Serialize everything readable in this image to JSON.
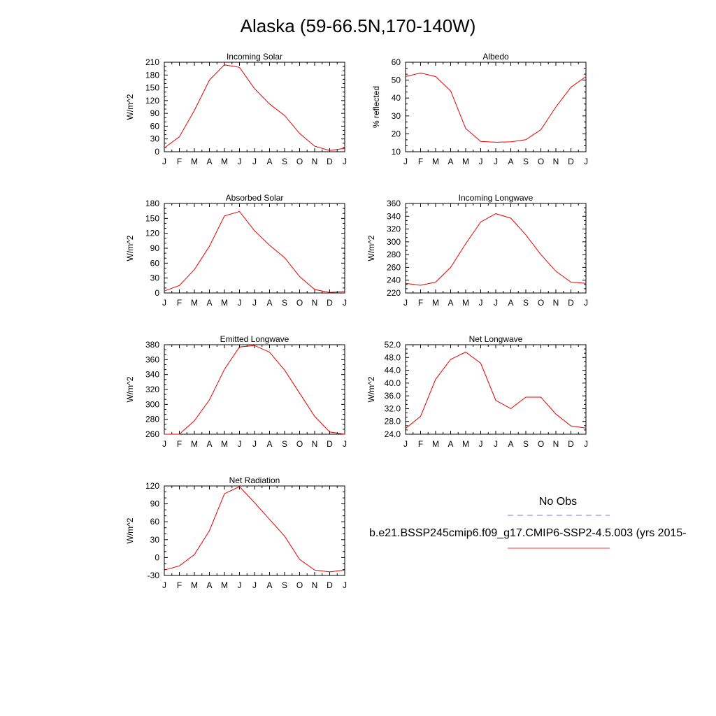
{
  "title": "Alaska (59-66.5N,170-140W)",
  "months": [
    "J",
    "F",
    "M",
    "A",
    "M",
    "J",
    "J",
    "A",
    "S",
    "O",
    "N",
    "D",
    "J"
  ],
  "legend": {
    "obs_label": "No Obs",
    "obs_color": "#7b7bd6",
    "model_label": "b.e21.BSSP245cmip6.f09_g17.CMIP6-SSP2-4.5.003 (yrs 2015-",
    "model_color": "#ff3b3b"
  },
  "series_color": "#e60000",
  "chart_data": [
    {
      "type": "line",
      "title": "Incoming Solar",
      "ylabel": "W/m^2",
      "ylim": [
        0,
        210
      ],
      "yticks": [
        "0",
        "30",
        "60",
        "90",
        "120",
        "150",
        "180",
        "210"
      ],
      "values": [
        9,
        35,
        97,
        168,
        204,
        198,
        148,
        112,
        85,
        43,
        13,
        3,
        8
      ]
    },
    {
      "type": "line",
      "title": "Albedo",
      "ylabel": "% reflected",
      "ylim": [
        10,
        60
      ],
      "yticks": [
        "10",
        "20",
        "30",
        "40",
        "50",
        "60"
      ],
      "values": [
        52,
        54,
        52,
        44,
        23,
        15.8,
        15.3,
        15.5,
        16.7,
        22.3,
        35,
        46,
        52
      ]
    },
    {
      "type": "line",
      "title": "Absorbed Solar",
      "ylabel": "W/m^2",
      "ylim": [
        0,
        180
      ],
      "yticks": [
        "0",
        "30",
        "60",
        "90",
        "120",
        "150",
        "180"
      ],
      "values": [
        4,
        15,
        47,
        94,
        155,
        164,
        125,
        96,
        71,
        33,
        7,
        1,
        3
      ]
    },
    {
      "type": "line",
      "title": "Incoming Longwave",
      "ylabel": "W/m^2",
      "ylim": [
        220,
        360
      ],
      "yticks": [
        "220",
        "240",
        "260",
        "280",
        "300",
        "320",
        "340",
        "360"
      ],
      "values": [
        235,
        232,
        237,
        260,
        297,
        331,
        344,
        337,
        311,
        280,
        254,
        237,
        235
      ]
    },
    {
      "type": "line",
      "title": "Emitted Longwave",
      "ylabel": "W/m^2",
      "ylim": [
        260,
        380
      ],
      "yticks": [
        "260",
        "280",
        "300",
        "320",
        "340",
        "360",
        "380"
      ],
      "values": [
        260,
        260,
        278,
        306,
        347,
        377,
        379,
        370,
        346,
        315,
        284,
        263,
        260
      ]
    },
    {
      "type": "line",
      "title": "Net Longwave",
      "ylabel": "W/m^2",
      "ylim": [
        24,
        52
      ],
      "yticks": [
        "24.0",
        "28.0",
        "32.0",
        "36.0",
        "40.0",
        "44.0",
        "48.0",
        "52.0"
      ],
      "values": [
        25.8,
        29.6,
        41.2,
        47.4,
        49.7,
        46.2,
        34.6,
        32.0,
        35.6,
        35.6,
        30.3,
        26.6,
        25.9
      ]
    },
    {
      "type": "line",
      "title": "Net Radiation",
      "ylabel": "W/m^2",
      "ylim": [
        -30,
        120
      ],
      "yticks": [
        "-30",
        "0",
        "30",
        "60",
        "90",
        "120"
      ],
      "values": [
        -21,
        -14,
        5,
        45,
        107,
        119,
        92,
        64,
        36,
        -3,
        -21,
        -24,
        -21
      ]
    }
  ]
}
